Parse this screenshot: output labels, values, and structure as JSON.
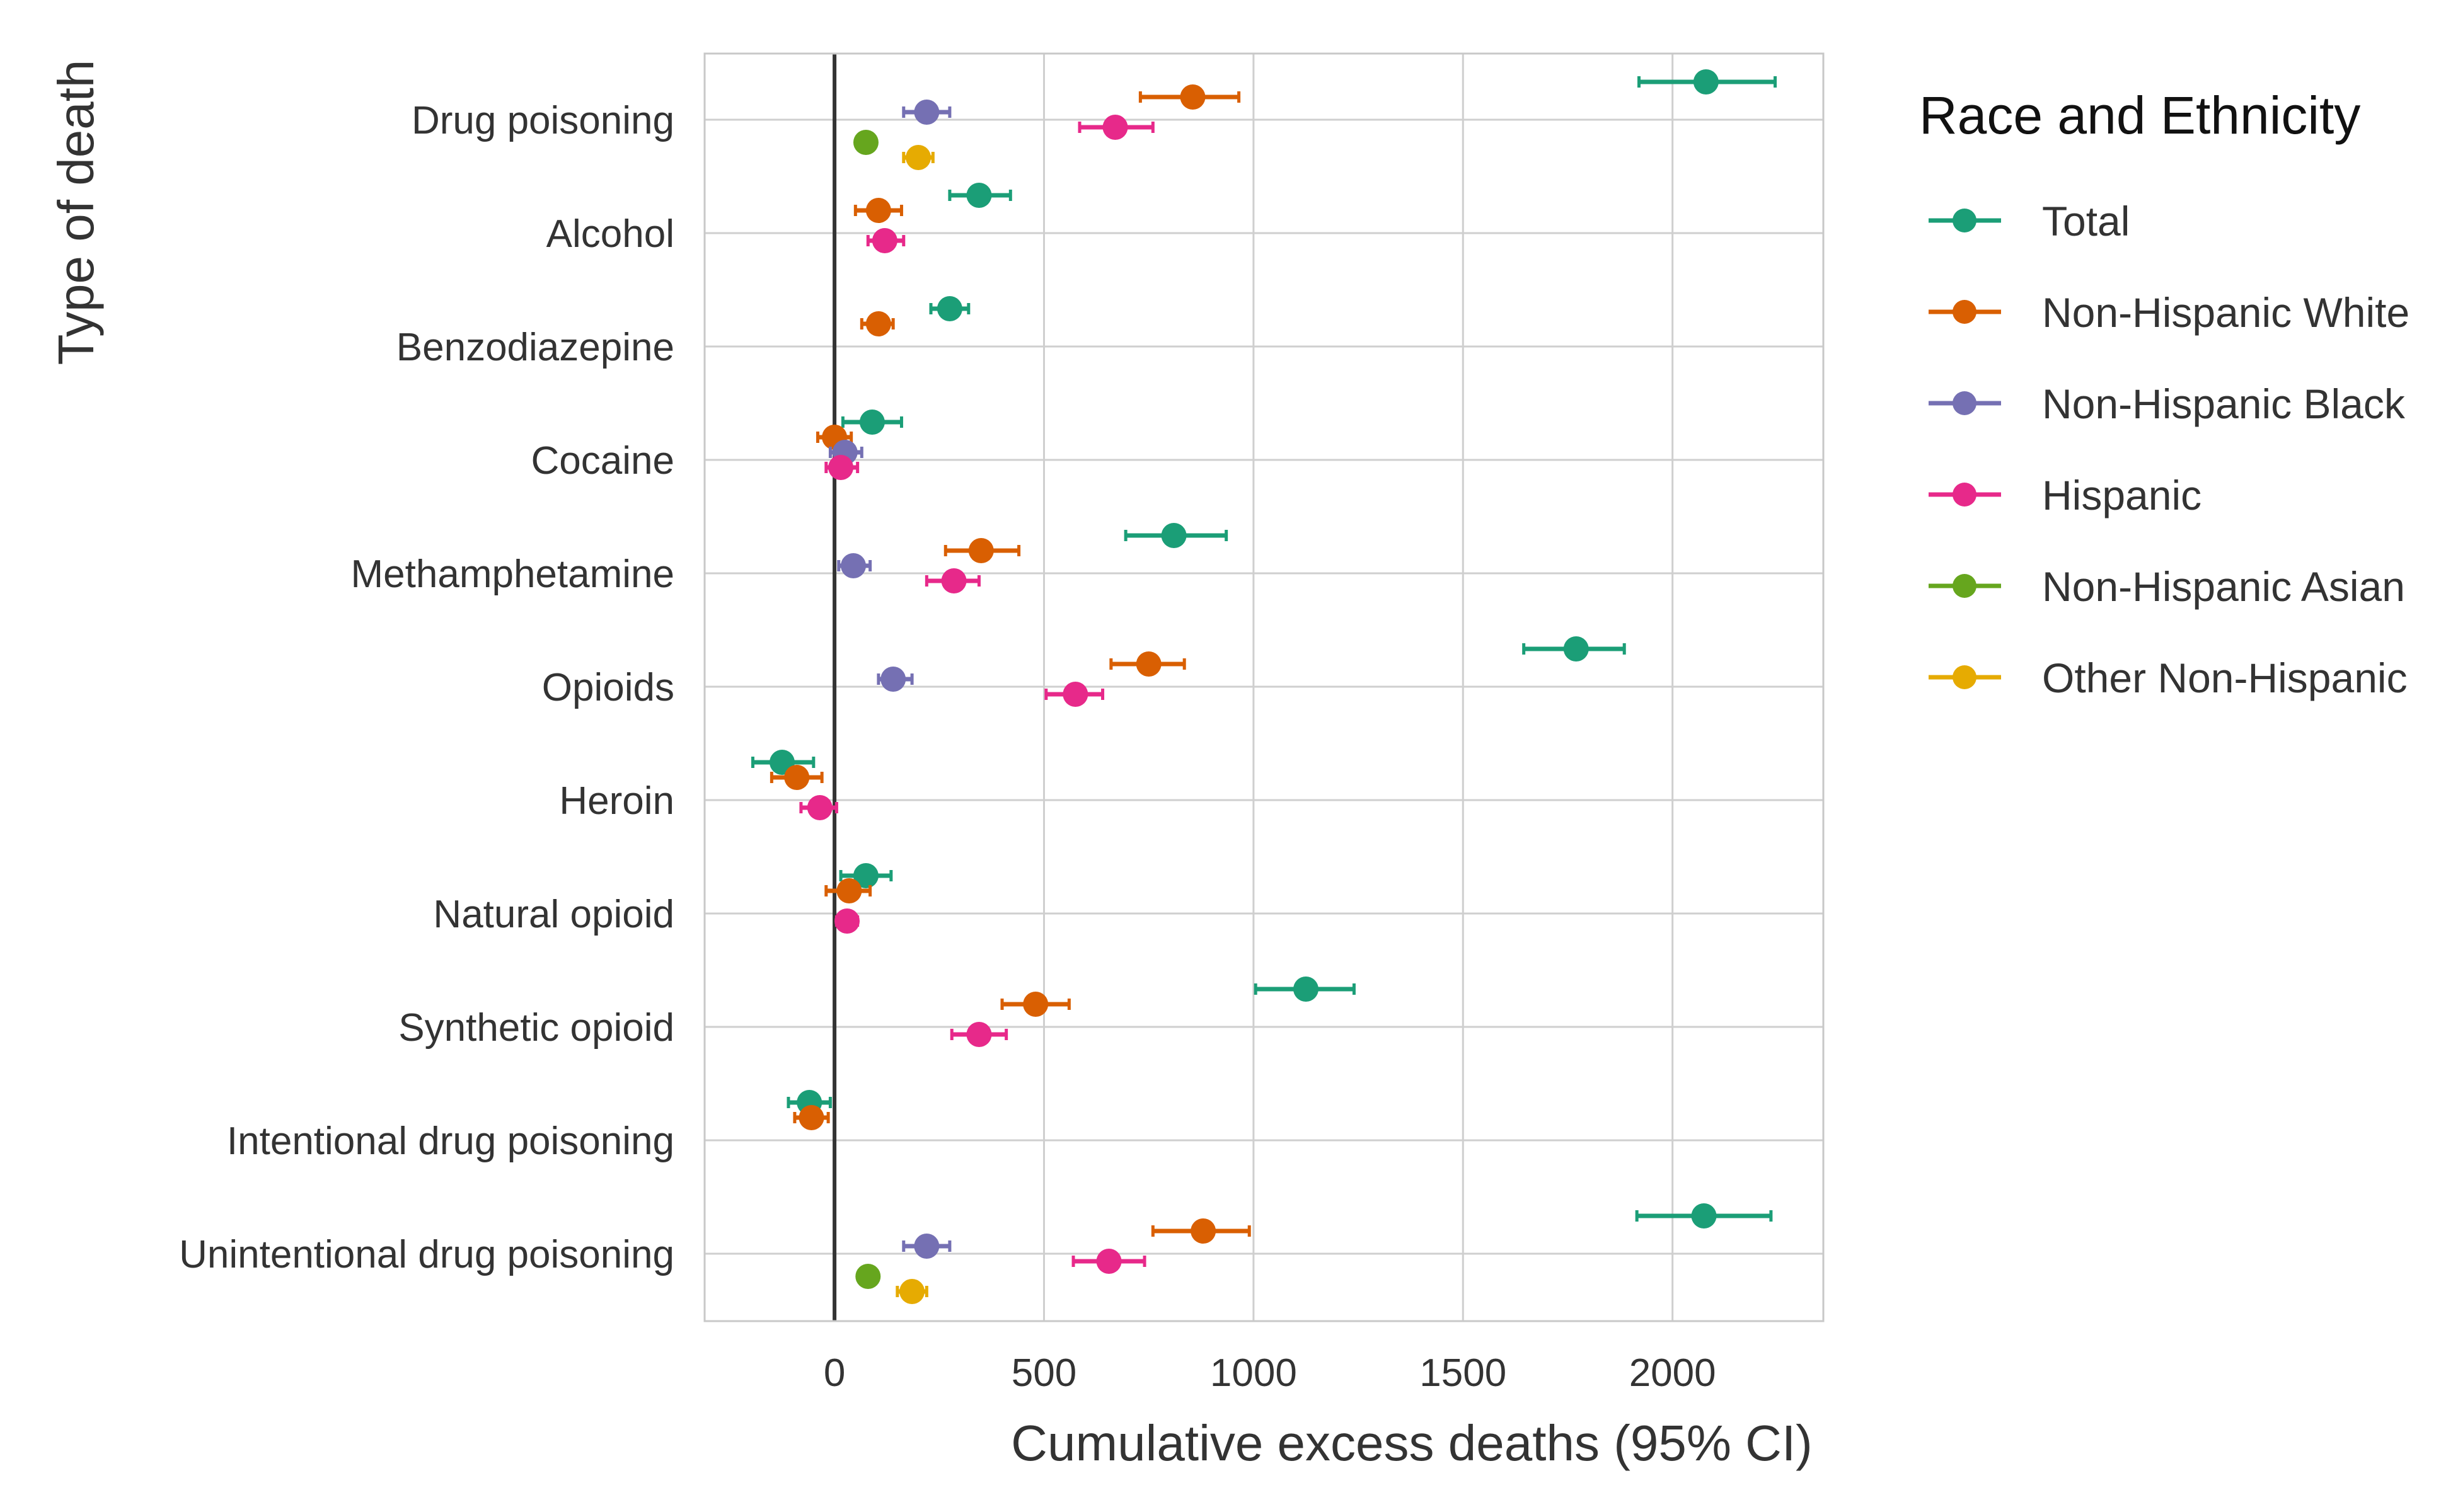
{
  "chart_data": {
    "type": "scatter",
    "subtype": "dot-and-whisker",
    "xlabel": "Cumulative excess deaths (95% CI)",
    "ylabel": "Type of death",
    "xlim": [
      -310,
      2360
    ],
    "xticks": [
      0,
      500,
      1000,
      1500,
      2000
    ],
    "reference_line_x": 0,
    "grid": true,
    "legend": {
      "title": "Race and Ethnicity",
      "position": "right"
    },
    "categories": [
      "Drug poisoning",
      "Alcohol",
      "Benzodiazepine",
      "Cocaine",
      "Methamphetamine",
      "Opioids",
      "Heroin",
      "Natural opioid",
      "Synthetic opioid",
      "Intentional drug poisoning",
      "Unintentional drug poisoning"
    ],
    "series": [
      {
        "name": "Total",
        "color": "#1b9e77",
        "values": [
          2080,
          345,
          275,
          90,
          810,
          1770,
          -125,
          75,
          1125,
          -60,
          2075
        ],
        "ci_low": [
          1920,
          275,
          230,
          20,
          695,
          1645,
          -195,
          15,
          1005,
          -110,
          1915
        ],
        "ci_high": [
          2245,
          420,
          320,
          160,
          935,
          1885,
          -50,
          135,
          1240,
          -10,
          2235
        ]
      },
      {
        "name": "Non-Hispanic White",
        "color": "#d95f02",
        "values": [
          855,
          105,
          105,
          0,
          350,
          750,
          -90,
          35,
          480,
          -55,
          880
        ],
        "ci_low": [
          730,
          50,
          65,
          -40,
          265,
          660,
          -150,
          -20,
          400,
          -95,
          760
        ],
        "ci_high": [
          965,
          160,
          140,
          40,
          440,
          835,
          -30,
          85,
          560,
          -15,
          990
        ]
      },
      {
        "name": "Non-Hispanic Black",
        "color": "#7570b3",
        "values": [
          220,
          null,
          null,
          25,
          45,
          null,
          null,
          null,
          null,
          null,
          220
        ],
        "ci_low": [
          165,
          null,
          null,
          -10,
          10,
          null,
          null,
          null,
          null,
          null,
          165
        ],
        "ci_high": [
          275,
          null,
          null,
          65,
          85,
          185,
          null,
          null,
          null,
          null,
          275
        ],
        "ci_low_opioids": 105
      },
      {
        "name": "Hispanic",
        "color": "#e7298a",
        "values": [
          670,
          120,
          null,
          15,
          285,
          575,
          -35,
          30,
          345,
          null,
          655
        ],
        "ci_low": [
          585,
          80,
          null,
          -20,
          220,
          505,
          -80,
          5,
          280,
          null,
          570
        ],
        "ci_high": [
          760,
          165,
          null,
          55,
          345,
          640,
          5,
          55,
          410,
          null,
          740
        ]
      },
      {
        "name": "Non-Hispanic Asian",
        "color": "#66a61e",
        "values": [
          75,
          null,
          null,
          null,
          null,
          null,
          null,
          null,
          null,
          null,
          80
        ],
        "ci_low": [
          55,
          null,
          null,
          null,
          null,
          null,
          null,
          null,
          null,
          null,
          60
        ],
        "ci_high": [
          95,
          null,
          null,
          null,
          null,
          null,
          null,
          null,
          null,
          null,
          100
        ]
      },
      {
        "name": "Other Non-Hispanic",
        "color": "#e6ab02",
        "values": [
          200,
          null,
          null,
          null,
          null,
          null,
          null,
          null,
          null,
          null,
          185
        ],
        "ci_low": [
          165,
          null,
          null,
          null,
          null,
          null,
          null,
          null,
          null,
          null,
          150
        ],
        "ci_high": [
          235,
          null,
          null,
          null,
          null,
          null,
          null,
          null,
          null,
          null,
          220
        ]
      }
    ]
  }
}
